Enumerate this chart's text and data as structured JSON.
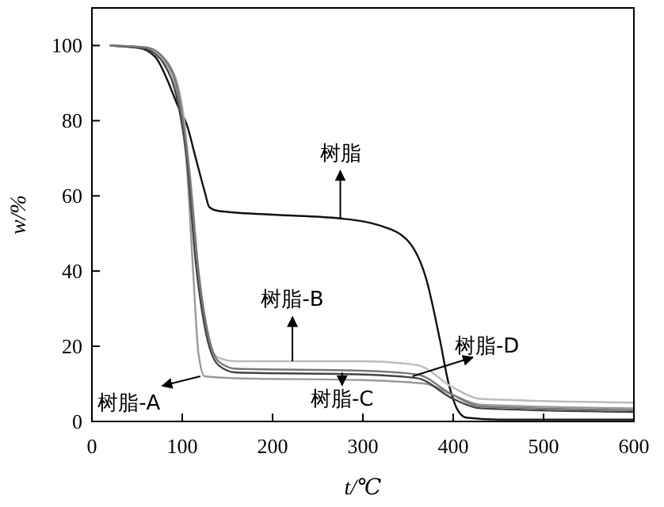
{
  "chart_data": {
    "type": "line",
    "xlabel": "t/℃",
    "ylabel": "w/%",
    "xlim": [
      0,
      600
    ],
    "ylim": [
      0,
      110
    ],
    "xticks": [
      0,
      100,
      200,
      300,
      400,
      500,
      600
    ],
    "yticks": [
      0,
      20,
      40,
      60,
      80,
      100
    ],
    "grid": false,
    "line_style": "solid",
    "series": [
      {
        "color": "#111111",
        "x": [
          20,
          50,
          70,
          85,
          95,
          105,
          115,
          125,
          130,
          140,
          200,
          275,
          320,
          350,
          370,
          385,
          395,
          405,
          415,
          450,
          600
        ],
        "values": [
          100,
          99.5,
          97,
          90,
          84,
          79,
          70,
          61,
          57,
          56,
          55,
          54,
          52,
          48,
          38,
          22,
          10,
          3,
          1,
          0.5,
          0.5
        ]
      },
      {
        "color": "#999999",
        "x": [
          20,
          60,
          80,
          95,
          105,
          112,
          118,
          125,
          160,
          300,
          370,
          400,
          430,
          600
        ],
        "values": [
          100,
          99.5,
          96,
          87,
          68,
          40,
          18,
          12,
          11.5,
          11,
          10,
          7,
          4.5,
          3.5
        ]
      },
      {
        "color": "#bbbbbb",
        "x": [
          20,
          60,
          85,
          100,
          110,
          118,
          128,
          140,
          160,
          300,
          360,
          400,
          430,
          600
        ],
        "values": [
          100,
          99.5,
          95,
          84,
          62,
          40,
          22,
          17,
          16,
          16,
          15,
          9,
          6,
          5
        ]
      },
      {
        "color": "#444444",
        "x": [
          20,
          60,
          80,
          95,
          105,
          115,
          125,
          140,
          160,
          300,
          360,
          400,
          430,
          600
        ],
        "values": [
          100,
          99,
          95,
          85,
          70,
          42,
          25,
          15,
          13,
          12.5,
          11.5,
          6,
          3.5,
          2.5
        ]
      },
      {
        "color": "#777777",
        "x": [
          20,
          60,
          82,
          97,
          108,
          118,
          128,
          140,
          160,
          300,
          360,
          400,
          430,
          600
        ],
        "values": [
          100,
          99.5,
          96,
          86,
          66,
          40,
          24,
          16,
          14,
          13.5,
          12.5,
          7,
          4,
          3
        ]
      }
    ],
    "annotations": [
      {
        "text": "树脂",
        "x": 275,
        "y": 54
      },
      {
        "text": "树脂-B",
        "x": 222,
        "y": 16
      },
      {
        "text": "树脂-A",
        "x": 120,
        "y": 12
      },
      {
        "text": "树脂-C",
        "x": 277,
        "y": 13
      },
      {
        "text": "树脂-D",
        "x": 355,
        "y": 12
      }
    ]
  }
}
